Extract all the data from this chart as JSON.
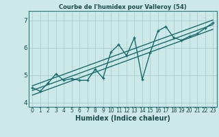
{
  "title": "Courbe de l'humidex pour Valleroy (54)",
  "xlabel": "Humidex (Indice chaleur)",
  "bg_color": "#cce8e8",
  "grid_color": "#aad0d0",
  "line_color": "#1a6b6b",
  "spine_color": "#2a7a7a",
  "xlim": [
    -0.5,
    23.5
  ],
  "ylim": [
    3.85,
    7.35
  ],
  "yticks": [
    4,
    5,
    6,
    7
  ],
  "xticks": [
    0,
    1,
    2,
    3,
    4,
    5,
    6,
    7,
    8,
    9,
    10,
    11,
    12,
    13,
    14,
    15,
    16,
    17,
    18,
    19,
    20,
    21,
    22,
    23
  ],
  "scatter_x": [
    0,
    1,
    2,
    3,
    4,
    5,
    6,
    7,
    8,
    9,
    10,
    11,
    12,
    13,
    14,
    15,
    16,
    17,
    18,
    19,
    20,
    21,
    22,
    23
  ],
  "scatter_y": [
    4.55,
    4.42,
    4.72,
    5.05,
    4.82,
    4.88,
    4.82,
    4.82,
    5.22,
    4.9,
    5.85,
    6.12,
    5.72,
    6.38,
    4.85,
    5.82,
    6.62,
    6.78,
    6.38,
    6.28,
    6.42,
    6.52,
    6.72,
    6.92
  ],
  "line1_x": [
    0,
    23
  ],
  "line1_y": [
    4.45,
    6.85
  ],
  "line2_x": [
    0,
    23
  ],
  "line2_y": [
    4.62,
    7.02
  ],
  "line3_x": [
    0,
    23
  ],
  "line3_y": [
    4.28,
    6.68
  ]
}
